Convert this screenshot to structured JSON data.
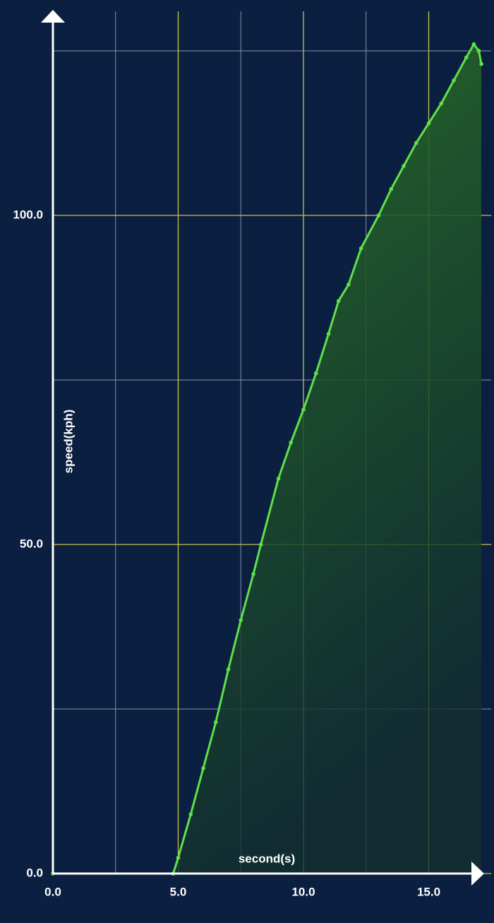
{
  "chart_data": {
    "type": "line",
    "x_label": "second(s)",
    "y_label": "speed(kph)",
    "xlim": [
      0,
      17.5
    ],
    "ylim": [
      0,
      131
    ],
    "xticks": [
      {
        "value": 0,
        "label": "0.0"
      },
      {
        "value": 5,
        "label": "5.0"
      },
      {
        "value": 10,
        "label": "10.0"
      },
      {
        "value": 15,
        "label": "15.0"
      }
    ],
    "minor_xticks": [
      2.5,
      7.5,
      12.5
    ],
    "yticks": [
      {
        "value": 0,
        "label": "0.0"
      },
      {
        "value": 50,
        "label": "50.0"
      },
      {
        "value": 100,
        "label": "100.0"
      }
    ],
    "minor_yticks": [
      25,
      75,
      125
    ],
    "grid": true,
    "major_grid_color": "#c9c24a",
    "minor_grid_color": "#8a93a8",
    "background": "#0b1f40",
    "series": [
      {
        "color": "#5fe04a",
        "x": [
          0,
          4.8,
          5.0,
          5.5,
          6.0,
          6.5,
          7.0,
          7.5,
          8.0,
          8.3,
          9.0,
          9.5,
          10.0,
          10.5,
          11.0,
          11.4,
          11.8,
          12.3,
          13.0,
          13.5,
          14.0,
          14.5,
          15.0,
          15.5,
          16.0,
          16.5,
          16.8,
          17.0,
          17.1
        ],
        "values": [
          0,
          0,
          2.4,
          9,
          16,
          23,
          31,
          38.5,
          45.5,
          50,
          60,
          65.5,
          70.5,
          76,
          82,
          87,
          89.5,
          95,
          100,
          104,
          107.5,
          111,
          114,
          117,
          120.5,
          124,
          126,
          125,
          123
        ]
      }
    ]
  }
}
